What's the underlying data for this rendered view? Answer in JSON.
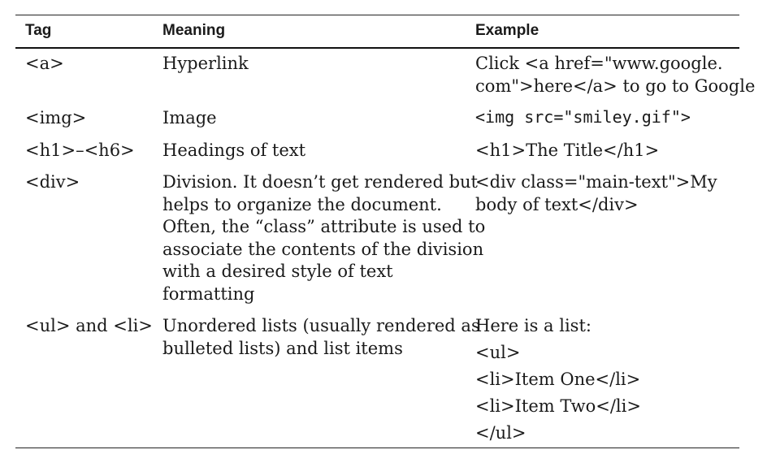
{
  "headers": {
    "tag": "Tag",
    "meaning": "Meaning",
    "example": "Example"
  },
  "rows": [
    {
      "tag": "<a>",
      "meaning": [
        "Hyperlink"
      ],
      "example": [
        "Click <a href=\"www.google.",
        "com\">here</a> to go to Google"
      ]
    },
    {
      "tag": "<img>",
      "meaning": [
        "Image"
      ],
      "example": [
        "<img src=\"smiley.gif\">"
      ]
    },
    {
      "tag": "<h1>–<h6>",
      "meaning": [
        "Headings of text"
      ],
      "example": [
        "<h1>The Title</h1>"
      ]
    },
    {
      "tag": "<div>",
      "meaning": [
        "Division. It doesn’t get rendered but",
        "helps to organize the document.",
        "Often, the “class” attribute is used to",
        "associate the contents of the division",
        "with a desired style of text",
        "formatting"
      ],
      "example": [
        "<div class=\"main-text\">My",
        "body of text</div>"
      ]
    },
    {
      "tag": "<ul> and <li>",
      "meaning": [
        "Unordered lists (usually rendered as",
        "bulleted lists) and list items"
      ],
      "example": [
        "Here is a list:",
        "<ul>",
        "<li>Item One</li>",
        "<li>Item Two</li>",
        "</ul>"
      ]
    }
  ]
}
